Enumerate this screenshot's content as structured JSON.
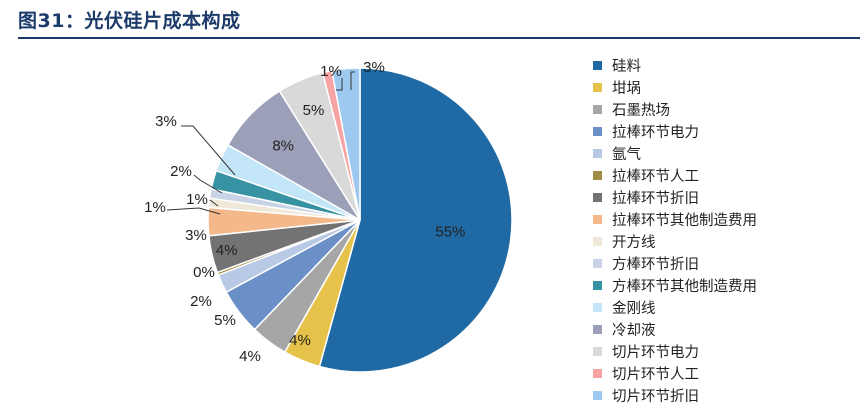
{
  "figure": {
    "title": "图31：光伏硅片成本构成"
  },
  "colors": {
    "slices": [
      "#1f6aa5",
      "#e7c24a",
      "#a6a6a6",
      "#6b8fc7",
      "#b7c9e5",
      "#a08c45",
      "#737373",
      "#f4b88a",
      "#efe8d8",
      "#c9d3e6",
      "#3792a3",
      "#c2e6f7",
      "#9c9fb8",
      "#d9d9d9",
      "#f5a3a3",
      "#9dc8ef"
    ]
  },
  "chart_data": {
    "type": "pie",
    "title": "光伏硅片成本构成",
    "categories": [
      "硅料",
      "坩埚",
      "石墨热场",
      "拉棒环节电力",
      "氩气",
      "拉棒环节人工",
      "拉棒环节折旧",
      "拉棒环节其他制造费用",
      "开方线",
      "方棒环节折旧",
      "方棒环节其他制造费用",
      "金刚线",
      "冷却液",
      "切片环节电力",
      "切片环节人工",
      "切片环节折旧"
    ],
    "values": [
      55,
      4,
      4,
      5,
      2,
      0.3,
      4,
      3,
      1,
      1,
      2,
      3,
      8,
      5,
      1,
      3
    ],
    "data_labels": [
      "55%",
      "4%",
      "4%",
      "5%",
      "2%",
      "0%",
      "4%",
      "3%",
      "1%",
      "1%",
      "2%",
      "3%",
      "8%",
      "5%",
      "1%",
      "3%"
    ],
    "legend_position": "right"
  }
}
